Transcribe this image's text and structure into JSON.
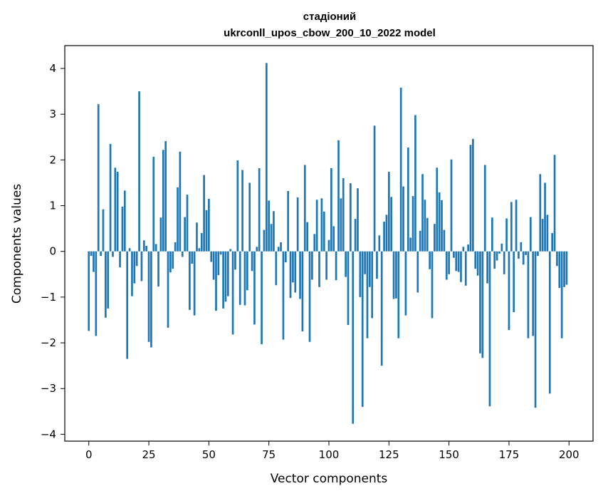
{
  "chart_data": {
    "type": "bar",
    "title": "стадіоний",
    "subtitle": "ukrconll_upos_cbow_200_10_2022 model",
    "xlabel": "Vector components",
    "ylabel": "Components values",
    "xlim": [
      -10,
      210
    ],
    "ylim": [
      -4.15,
      4.5
    ],
    "xticks": [
      0,
      25,
      50,
      75,
      100,
      125,
      150,
      175,
      200
    ],
    "yticks": [
      -4,
      -3,
      -2,
      -1,
      0,
      1,
      2,
      3,
      4
    ],
    "bar_color": "#1f77b4",
    "grid": false,
    "legend": "none",
    "x": [
      0,
      1,
      2,
      3,
      4,
      5,
      6,
      7,
      8,
      9,
      10,
      11,
      12,
      13,
      14,
      15,
      16,
      17,
      18,
      19,
      20,
      21,
      22,
      23,
      24,
      25,
      26,
      27,
      28,
      29,
      30,
      31,
      32,
      33,
      34,
      35,
      36,
      37,
      38,
      39,
      40,
      41,
      42,
      43,
      44,
      45,
      46,
      47,
      48,
      49,
      50,
      51,
      52,
      53,
      54,
      55,
      56,
      57,
      58,
      59,
      60,
      61,
      62,
      63,
      64,
      65,
      66,
      67,
      68,
      69,
      70,
      71,
      72,
      73,
      74,
      75,
      76,
      77,
      78,
      79,
      80,
      81,
      82,
      83,
      84,
      85,
      86,
      87,
      88,
      89,
      90,
      91,
      92,
      93,
      94,
      95,
      96,
      97,
      98,
      99,
      100,
      101,
      102,
      103,
      104,
      105,
      106,
      107,
      108,
      109,
      110,
      111,
      112,
      113,
      114,
      115,
      116,
      117,
      118,
      119,
      120,
      121,
      122,
      123,
      124,
      125,
      126,
      127,
      128,
      129,
      130,
      131,
      132,
      133,
      134,
      135,
      136,
      137,
      138,
      139,
      140,
      141,
      142,
      143,
      144,
      145,
      146,
      147,
      148,
      149,
      150,
      151,
      152,
      153,
      154,
      155,
      156,
      157,
      158,
      159,
      160,
      161,
      162,
      163,
      164,
      165,
      166,
      167,
      168,
      169,
      170,
      171,
      172,
      173,
      174,
      175,
      176,
      177,
      178,
      179,
      180,
      181,
      182,
      183,
      184,
      185,
      186,
      187,
      188,
      189,
      190,
      191,
      192,
      193,
      194,
      195,
      196,
      197,
      198,
      199
    ],
    "values": [
      -1.74,
      -0.1,
      -0.45,
      -1.85,
      3.22,
      -0.1,
      0.92,
      -1.45,
      -1.25,
      2.35,
      -0.12,
      1.83,
      1.74,
      -0.35,
      0.98,
      1.33,
      -2.35,
      0.07,
      -0.98,
      -0.7,
      -0.32,
      3.5,
      -0.65,
      0.24,
      0.12,
      -1.98,
      -2.1,
      2.07,
      0.16,
      -0.77,
      0.74,
      2.22,
      2.41,
      -1.67,
      -0.46,
      -0.38,
      0.2,
      1.4,
      2.18,
      -0.12,
      0.75,
      1.24,
      -1.28,
      -0.27,
      -1.4,
      0.63,
      0.07,
      0.4,
      1.67,
      0.9,
      1.15,
      -0.23,
      -0.62,
      -1.3,
      -0.52,
      -0.07,
      -1.25,
      -1.1,
      -0.98,
      0.05,
      -1.82,
      -0.4,
      1.99,
      -1.17,
      1.78,
      -1.18,
      -0.85,
      1.5,
      -0.43,
      -1.6,
      0.1,
      1.82,
      -2.03,
      0.47,
      4.12,
      1.11,
      0.6,
      0.88,
      -0.74,
      0.1,
      0.2,
      -1.93,
      -0.24,
      1.32,
      -1.02,
      -0.68,
      -0.9,
      1.18,
      -1.04,
      -1.75,
      1.89,
      0.64,
      -1.98,
      -0.62,
      0.38,
      1.13,
      -0.78,
      1.16,
      0.87,
      -0.62,
      0.25,
      1.82,
      0.55,
      -0.63,
      2.43,
      1.16,
      1.6,
      -0.56,
      -1.61,
      1.49,
      -3.77,
      0.71,
      1.38,
      -1.0,
      -3.4,
      -0.5,
      -1.9,
      -0.78,
      -1.46,
      2.75,
      -0.6,
      0.35,
      -2.5,
      0.65,
      0.8,
      1.74,
      1.19,
      -1.04,
      -1.03,
      -1.9,
      3.58,
      1.42,
      -1.4,
      2.27,
      0.3,
      1.21,
      2.98,
      -0.9,
      0.45,
      1.69,
      1.13,
      0.73,
      -0.39,
      -1.46,
      0.6,
      1.83,
      1.29,
      1.12,
      0.47,
      -0.62,
      -0.5,
      2.01,
      -0.14,
      -0.43,
      -0.45,
      -0.67,
      0.1,
      -0.75,
      0.15,
      2.33,
      2.46,
      -0.38,
      -0.53,
      -2.23,
      -2.33,
      1.89,
      -0.7,
      -3.39,
      0.74,
      -0.38,
      -0.2,
      -0.05,
      0.17,
      -0.5,
      0.72,
      -1.72,
      1.08,
      -1.33,
      1.13,
      -0.16,
      0.2,
      -0.29,
      -0.08,
      -1.9,
      0.75,
      -1.85,
      -3.42,
      -0.1,
      1.69,
      0.71,
      1.5,
      0.8,
      -3.11,
      0.4,
      2.11,
      -0.32,
      -0.8,
      -1.9,
      -0.78,
      -0.73
    ]
  }
}
